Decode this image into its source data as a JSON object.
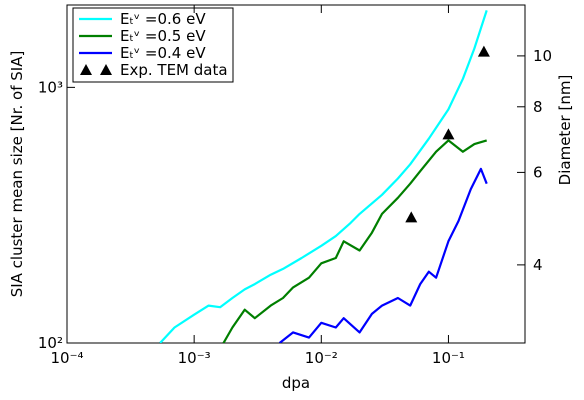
{
  "chart_data": {
    "type": "line",
    "x_label": "dpa",
    "y_label": "SIA cluster mean size [Nr. of SIA]",
    "y2_label": "Diameter [nm]",
    "xscale": "log",
    "yscale": "log",
    "y2scale": "log",
    "xlim": [
      0.0001,
      0.4
    ],
    "ylim": [
      100,
      2100
    ],
    "y2lim": [
      2.84,
      12.5
    ],
    "xticks": [
      {
        "value": 0.0001,
        "label": "10⁻⁴"
      },
      {
        "value": 0.001,
        "label": "10⁻³"
      },
      {
        "value": 0.01,
        "label": "10⁻²"
      },
      {
        "value": 0.1,
        "label": "10⁻¹"
      }
    ],
    "yticks": [
      {
        "value": 100,
        "label": "10²"
      },
      {
        "value": 1000,
        "label": "10³"
      }
    ],
    "y2ticks": [
      4,
      6,
      8,
      10
    ],
    "legend": "upper left",
    "series": [
      {
        "name": "Eₜᵛ =0.6 eV",
        "color": "#00ffff",
        "x": [
          0.00054,
          0.0007,
          0.001,
          0.0013,
          0.0016,
          0.002,
          0.0025,
          0.003,
          0.004,
          0.005,
          0.007,
          0.01,
          0.013,
          0.017,
          0.02,
          0.03,
          0.04,
          0.05,
          0.07,
          0.1,
          0.13,
          0.16,
          0.2
        ],
        "values": [
          100,
          115,
          129,
          140,
          138,
          150,
          162,
          170,
          185,
          195,
          215,
          240,
          262,
          295,
          320,
          380,
          440,
          500,
          630,
          820,
          1080,
          1420,
          2000
        ]
      },
      {
        "name": "Eₜᵛ =0.5 eV",
        "color": "#007f00",
        "x": [
          0.0017,
          0.002,
          0.0025,
          0.003,
          0.004,
          0.005,
          0.006,
          0.008,
          0.01,
          0.013,
          0.015,
          0.02,
          0.025,
          0.03,
          0.04,
          0.05,
          0.06,
          0.08,
          0.1,
          0.13,
          0.16,
          0.2
        ],
        "values": [
          100,
          115,
          135,
          125,
          140,
          150,
          165,
          180,
          205,
          215,
          250,
          230,
          270,
          320,
          370,
          420,
          470,
          560,
          620,
          560,
          600,
          620
        ]
      },
      {
        "name": "Eₜᵛ =0.4 eV",
        "color": "#0000ff",
        "x": [
          0.0047,
          0.006,
          0.008,
          0.01,
          0.013,
          0.015,
          0.02,
          0.025,
          0.03,
          0.04,
          0.05,
          0.06,
          0.07,
          0.08,
          0.1,
          0.12,
          0.15,
          0.18,
          0.2
        ],
        "values": [
          100,
          110,
          105,
          120,
          115,
          125,
          110,
          130,
          140,
          150,
          140,
          170,
          190,
          180,
          250,
          300,
          400,
          480,
          420
        ]
      },
      {
        "name": "Exp. TEM data",
        "color": "#000000",
        "type": "scatter",
        "marker": "triangle",
        "x": [
          0.051,
          0.1,
          0.19
        ],
        "values": [
          310,
          655,
          1380
        ]
      }
    ]
  }
}
